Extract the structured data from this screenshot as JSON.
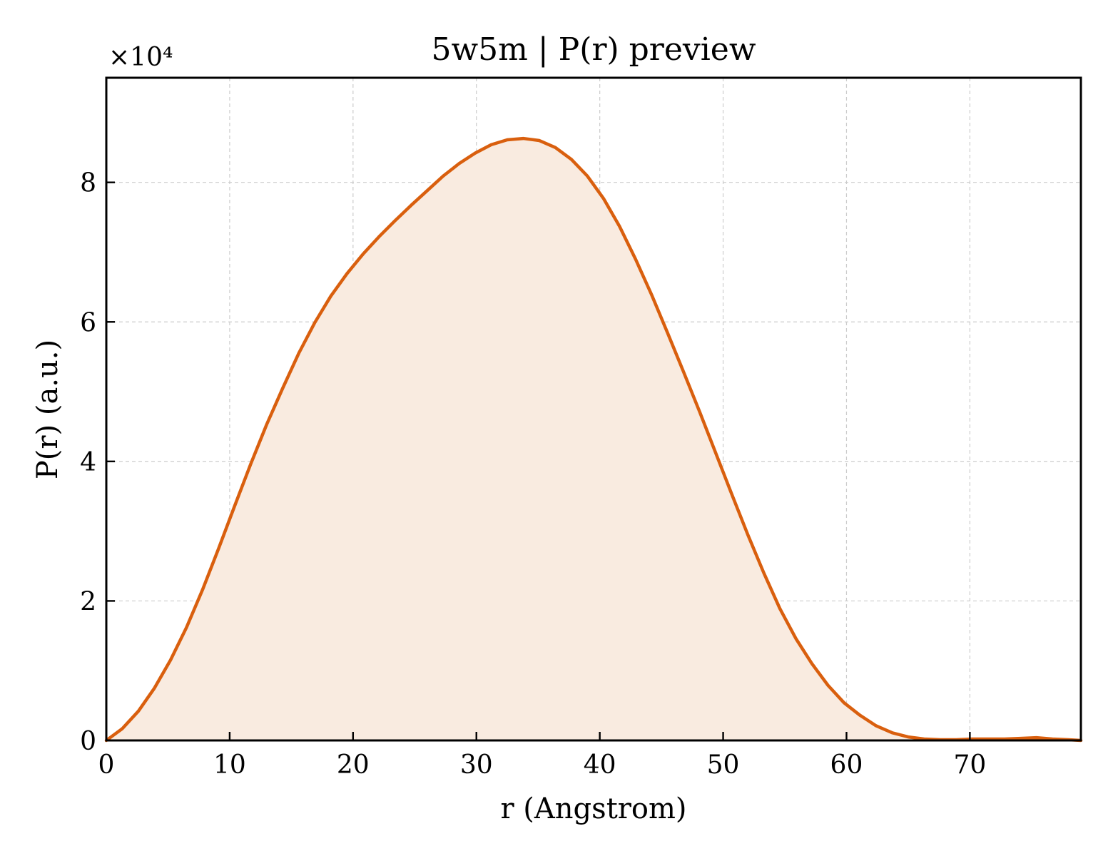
{
  "chart_data": {
    "type": "area",
    "title": "5w5m | P(r) preview",
    "xlabel": "r (Angstrom)",
    "ylabel": "P(r) (a.u.)",
    "y_offset_label": "×10⁴",
    "y_scale_factor": 10000,
    "xlim": [
      0,
      79
    ],
    "ylim": [
      0,
      95000
    ],
    "xticks": [
      0,
      10,
      20,
      30,
      40,
      50,
      60,
      70
    ],
    "yticks": [
      0,
      20000,
      40000,
      60000,
      80000
    ],
    "ytick_labels": [
      "0",
      "2",
      "4",
      "6",
      "8"
    ],
    "grid": true,
    "line_color": "#d95f0e",
    "fill_color": "#f9ebe0",
    "series": [
      {
        "x": [
          0,
          1.3,
          2.6,
          3.9,
          5.2,
          6.5,
          7.8,
          9.1,
          10.4,
          11.7,
          13.0,
          14.3,
          15.6,
          16.9,
          18.2,
          19.5,
          20.8,
          22.1,
          23.4,
          24.7,
          26.0,
          27.3,
          28.6,
          29.9,
          31.2,
          32.5,
          33.8,
          35.1,
          36.4,
          37.7,
          39.0,
          40.3,
          41.6,
          42.9,
          44.2,
          45.5,
          46.8,
          48.1,
          49.4,
          50.7,
          52.0,
          53.3,
          54.6,
          55.9,
          57.2,
          58.5,
          59.8,
          61.1,
          62.4,
          63.7,
          65.0,
          66.3,
          67.6,
          68.9,
          70.2,
          71.5,
          72.8,
          74.1,
          75.4,
          76.7,
          78.0,
          79.0
        ],
        "y": [
          0,
          1700,
          4200,
          7500,
          11500,
          16200,
          21600,
          27500,
          33600,
          39600,
          45300,
          50500,
          55500,
          59900,
          63700,
          66900,
          69700,
          72200,
          74500,
          76700,
          78800,
          80900,
          82700,
          84200,
          85400,
          86100,
          86300,
          86000,
          85000,
          83300,
          80900,
          77700,
          73700,
          69000,
          63900,
          58400,
          52800,
          47100,
          41200,
          35300,
          29500,
          24000,
          18900,
          14600,
          11000,
          7900,
          5400,
          3600,
          2100,
          1100,
          500,
          200,
          100,
          100,
          200,
          200,
          200,
          300,
          400,
          200,
          100,
          0
        ]
      }
    ]
  }
}
